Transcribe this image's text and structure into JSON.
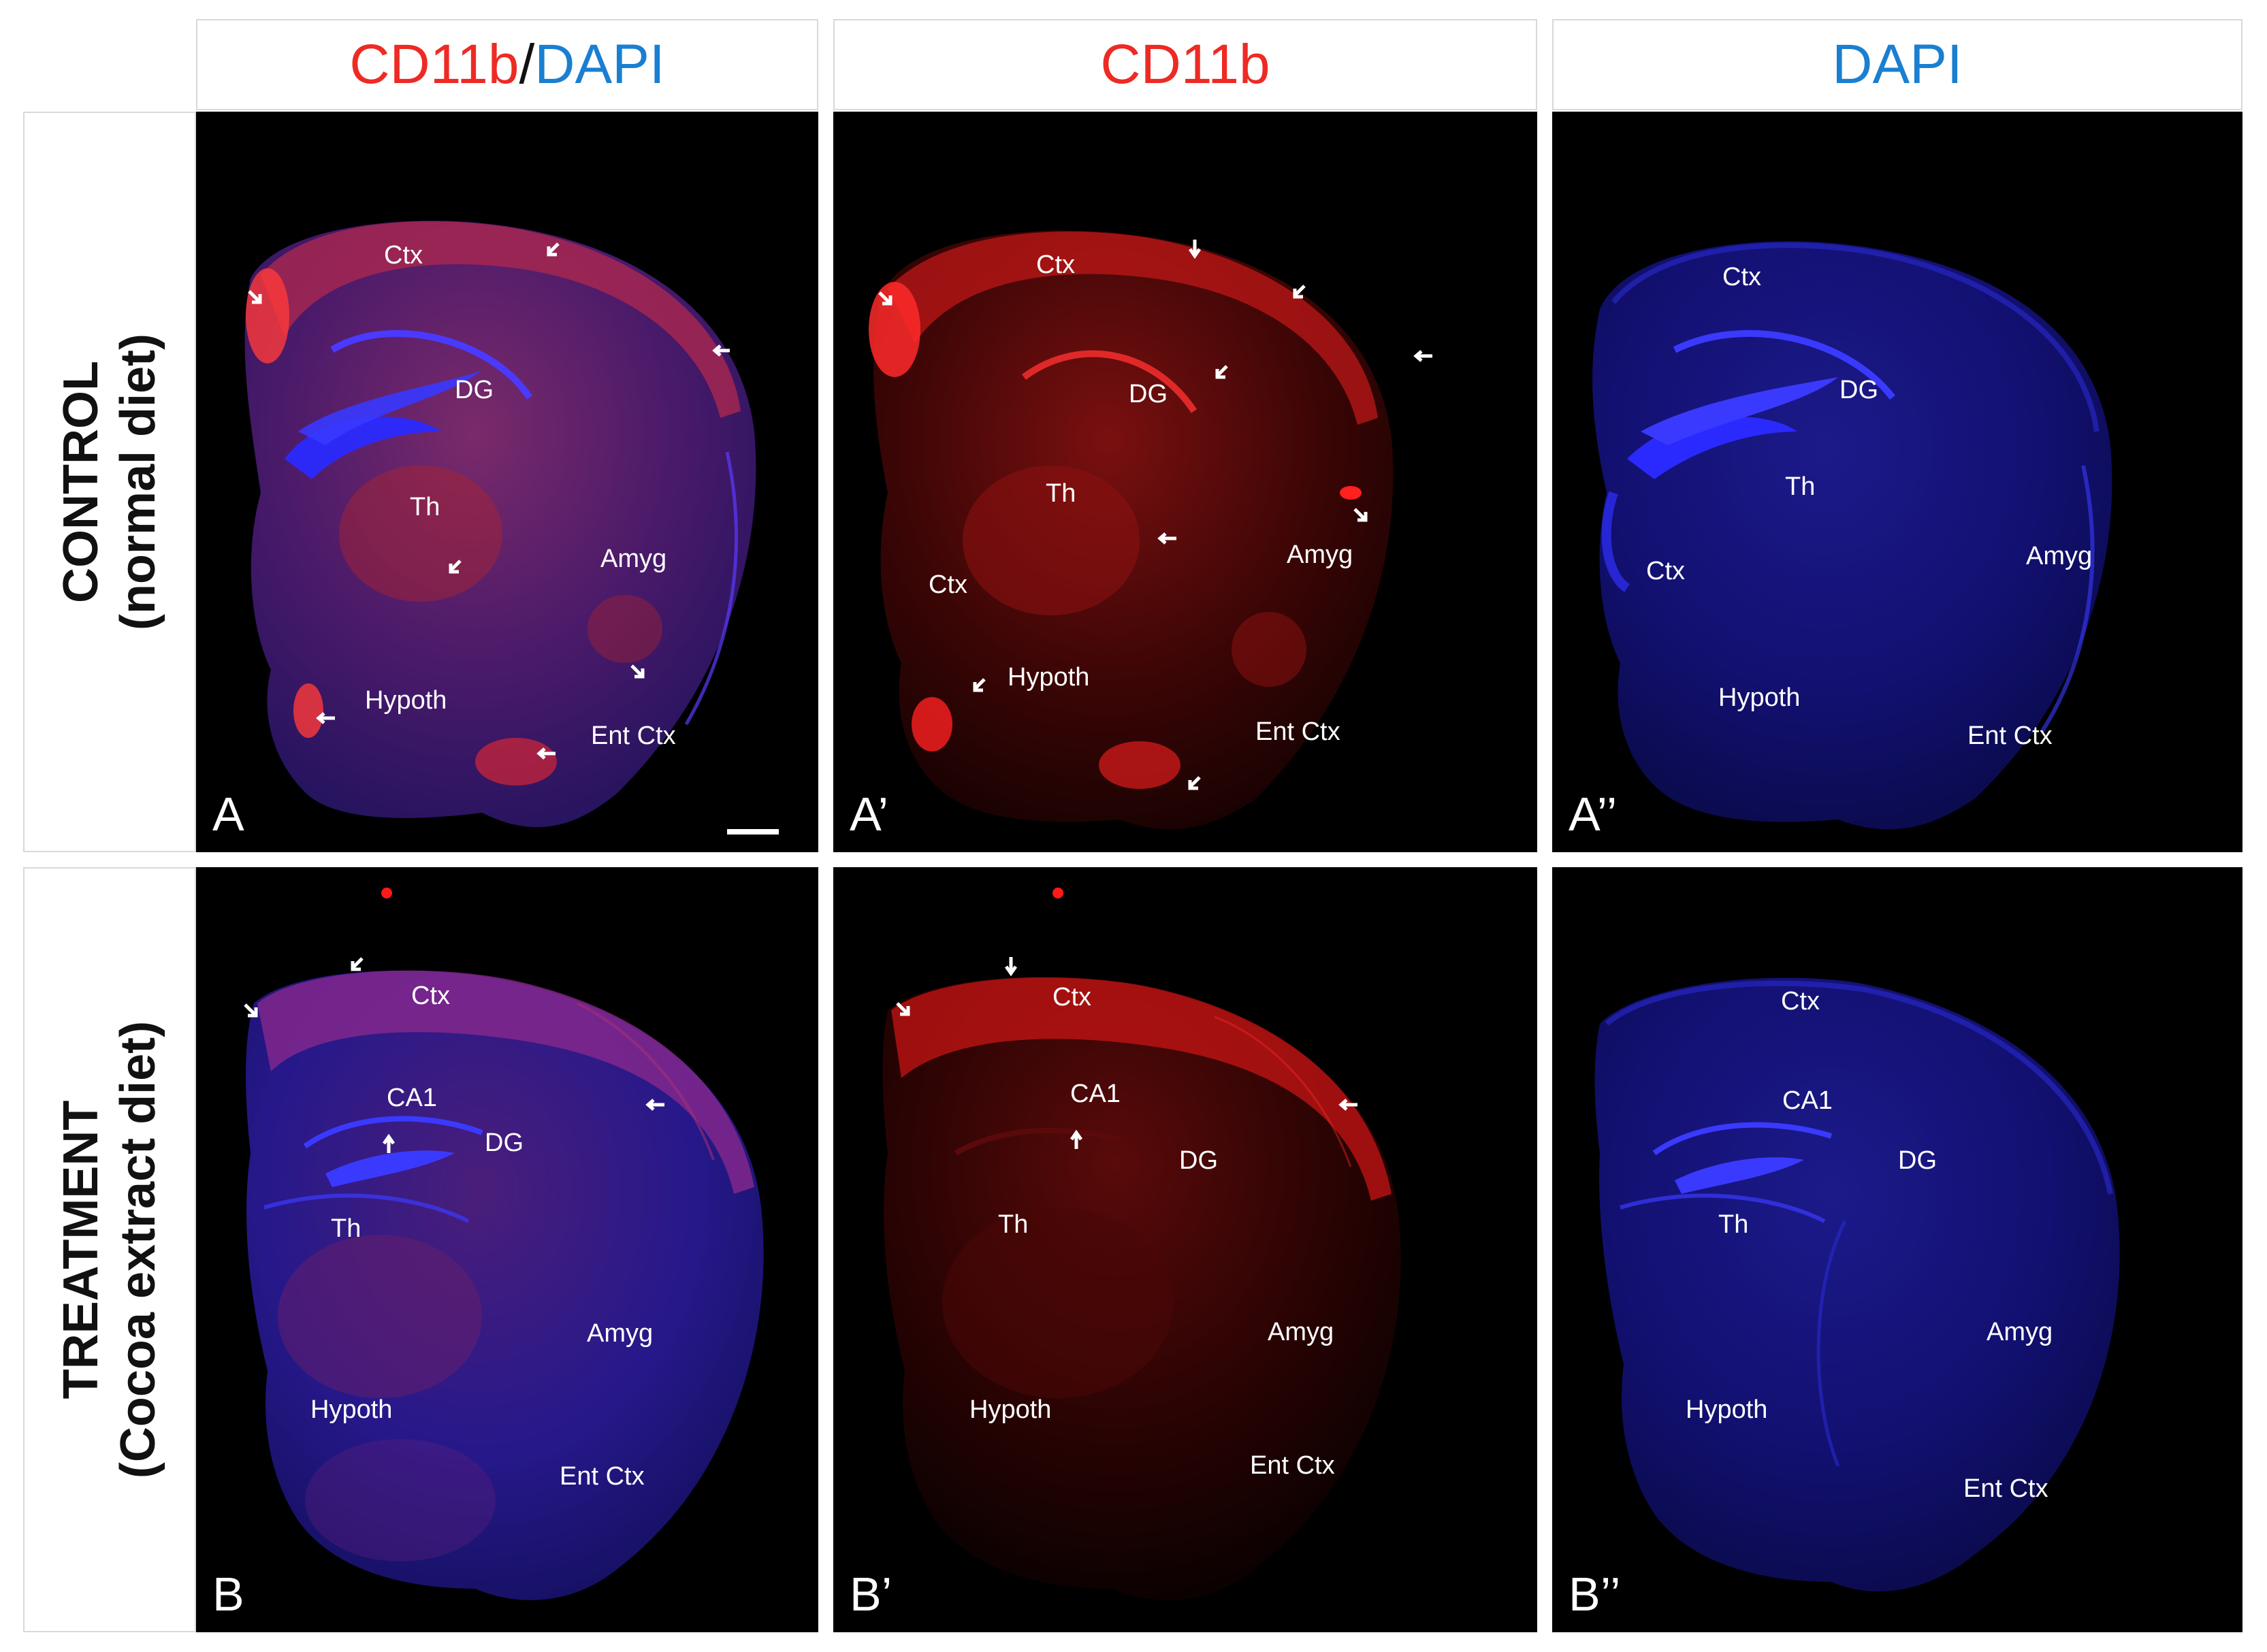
{
  "columns": [
    {
      "merged": {
        "red": "CD11b",
        "sep": "/",
        "blue": "DAPI"
      }
    },
    {
      "label": "CD11b",
      "color": "#ee2a24"
    },
    {
      "label": "DAPI",
      "color": "#1a7fd0"
    }
  ],
  "rows": [
    {
      "line1": "CONTROL",
      "line2": "(normal diet)"
    },
    {
      "line1": "TREATMENT",
      "line2": "(Cocoa extract diet)"
    }
  ],
  "panels": {
    "A": "A",
    "A1": "A’",
    "A2": "A’’",
    "B": "B",
    "B1": "B’",
    "B2": "B’’"
  },
  "regions": {
    "ctx": "Ctx",
    "dg": "DG",
    "th": "Th",
    "amyg": "Amyg",
    "hypoth": "Hypoth",
    "ent_ctx": "Ent Ctx",
    "ca1": "CA1"
  },
  "colors": {
    "cd11b": "#ee2a24",
    "dapi": "#1a7fd0",
    "panel_bg": "#000000",
    "label": "#ffffff"
  }
}
